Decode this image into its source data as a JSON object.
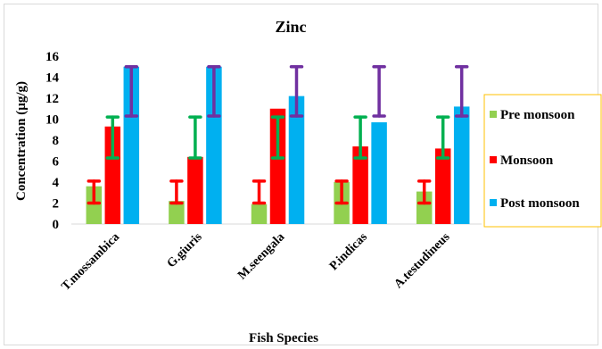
{
  "chart_data": {
    "type": "bar",
    "title": "Zinc",
    "xlabel": "Fish Species",
    "ylabel": "Concentration (µg/g)",
    "ylim": [
      0,
      16
    ],
    "yticks": [
      0,
      2,
      4,
      6,
      8,
      10,
      12,
      14,
      16
    ],
    "categories": [
      "T.mossambica",
      "G.giuris",
      "M.seengala",
      "P.indicas",
      "A.testudineus"
    ],
    "series": [
      {
        "name": "Pre monsoon",
        "color": "#92d050",
        "errorColor": "#ff0000",
        "values": [
          3.6,
          2.2,
          1.9,
          4.0,
          3.1
        ],
        "errLow": [
          2.0,
          2.0,
          2.0,
          2.0,
          2.0
        ],
        "errHigh": [
          4.1,
          4.1,
          4.1,
          4.1,
          4.1
        ]
      },
      {
        "name": "Monsoon",
        "color": "#ff0000",
        "errorColor": "#00b050",
        "values": [
          9.3,
          6.4,
          11.0,
          7.4,
          7.2
        ],
        "errLow": [
          6.3,
          6.3,
          6.3,
          6.3,
          6.3
        ],
        "errHigh": [
          10.2,
          10.2,
          10.2,
          10.2,
          10.2
        ]
      },
      {
        "name": "Post monsoon",
        "color": "#00b0f0",
        "errorColor": "#7030a0",
        "values": [
          15.0,
          15.0,
          12.2,
          9.7,
          11.2
        ],
        "errLow": [
          10.3,
          10.3,
          10.3,
          10.3,
          10.3
        ],
        "errHigh": [
          15.0,
          15.0,
          15.0,
          15.0,
          15.0
        ]
      }
    ],
    "legend": {
      "placement": "right",
      "borderColor": "#ffc000"
    },
    "grid": false
  }
}
